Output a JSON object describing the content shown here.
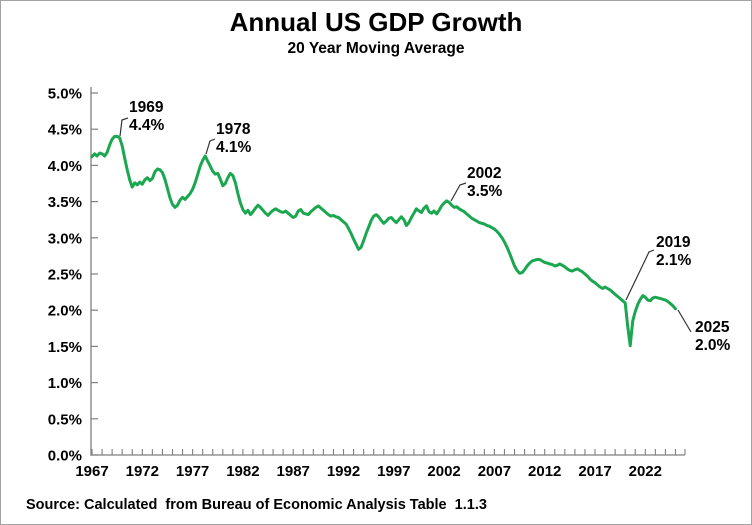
{
  "header": {
    "title": "Annual US GDP Growth",
    "subtitle": "20 Year Moving Average"
  },
  "footer": {
    "source": "Source: Calculated  from Bureau of Economic Analysis Table  1.1.3"
  },
  "chart_data": {
    "type": "line",
    "title": "Annual US GDP Growth",
    "subtitle": "20 Year Moving Average",
    "xlabel": "",
    "ylabel": "",
    "grid": "off",
    "legend": "none",
    "xlim": [
      1967,
      2025
    ],
    "ylim": [
      0,
      5
    ],
    "line_color": "#1ba750",
    "axis_color": "#7f7f7f",
    "leader_color": "#333333",
    "text_color": "#000000",
    "y_axis": {
      "min": 0,
      "max": 5,
      "step": 0.5,
      "unit": "%",
      "labels": [
        "0.0%",
        "0.5%",
        "1.0%",
        "1.5%",
        "2.0%",
        "2.5%",
        "3.0%",
        "3.5%",
        "4.0%",
        "4.5%",
        "5.0%"
      ]
    },
    "x_axis": {
      "tick_start": 1967,
      "tick_end": 2025,
      "tick_interval": 1,
      "label_years": [
        1967,
        1972,
        1977,
        1982,
        1987,
        1992,
        1997,
        2002,
        2007,
        2012,
        2017,
        2022
      ],
      "labels": [
        "1967",
        "1972",
        "1977",
        "1982",
        "1987",
        "1992",
        "1997",
        "2002",
        "2007",
        "2012",
        "2017",
        "2022"
      ]
    },
    "series": [
      {
        "name": "20-year moving average of annual US GDP growth (%)",
        "start_year": 1967,
        "step_years": 0.25,
        "values": [
          4.12,
          4.16,
          4.13,
          4.17,
          4.16,
          4.13,
          4.18,
          4.28,
          4.36,
          4.4,
          4.4,
          4.38,
          4.27,
          4.1,
          3.94,
          3.8,
          3.7,
          3.76,
          3.73,
          3.77,
          3.74,
          3.8,
          3.83,
          3.79,
          3.82,
          3.91,
          3.95,
          3.94,
          3.9,
          3.81,
          3.68,
          3.55,
          3.46,
          3.42,
          3.45,
          3.52,
          3.56,
          3.53,
          3.57,
          3.61,
          3.67,
          3.76,
          3.87,
          3.99,
          4.07,
          4.13,
          4.06,
          3.99,
          3.92,
          3.88,
          3.89,
          3.81,
          3.72,
          3.75,
          3.83,
          3.89,
          3.86,
          3.76,
          3.61,
          3.48,
          3.39,
          3.34,
          3.38,
          3.32,
          3.36,
          3.41,
          3.45,
          3.42,
          3.38,
          3.34,
          3.31,
          3.35,
          3.38,
          3.4,
          3.38,
          3.36,
          3.35,
          3.37,
          3.34,
          3.31,
          3.28,
          3.3,
          3.37,
          3.39,
          3.34,
          3.33,
          3.32,
          3.36,
          3.39,
          3.42,
          3.44,
          3.41,
          3.38,
          3.35,
          3.32,
          3.3,
          3.31,
          3.29,
          3.28,
          3.25,
          3.22,
          3.19,
          3.13,
          3.06,
          2.98,
          2.91,
          2.84,
          2.87,
          2.96,
          3.06,
          3.15,
          3.24,
          3.3,
          3.32,
          3.29,
          3.24,
          3.2,
          3.23,
          3.27,
          3.28,
          3.24,
          3.21,
          3.25,
          3.29,
          3.25,
          3.17,
          3.21,
          3.28,
          3.34,
          3.4,
          3.37,
          3.35,
          3.41,
          3.44,
          3.36,
          3.34,
          3.37,
          3.33,
          3.38,
          3.44,
          3.48,
          3.51,
          3.49,
          3.45,
          3.42,
          3.43,
          3.4,
          3.38,
          3.36,
          3.33,
          3.3,
          3.27,
          3.25,
          3.23,
          3.21,
          3.2,
          3.19,
          3.17,
          3.16,
          3.14,
          3.12,
          3.09,
          3.05,
          3.0,
          2.94,
          2.87,
          2.79,
          2.7,
          2.61,
          2.55,
          2.51,
          2.52,
          2.56,
          2.61,
          2.65,
          2.68,
          2.69,
          2.7,
          2.7,
          2.68,
          2.66,
          2.65,
          2.64,
          2.63,
          2.61,
          2.62,
          2.64,
          2.62,
          2.6,
          2.57,
          2.55,
          2.54,
          2.56,
          2.57,
          2.55,
          2.53,
          2.5,
          2.47,
          2.43,
          2.4,
          2.38,
          2.35,
          2.32,
          2.3,
          2.32,
          2.3,
          2.28,
          2.25,
          2.22,
          2.19,
          2.16,
          2.13,
          2.1,
          1.78,
          1.51,
          1.85,
          1.98,
          2.08,
          2.15,
          2.2,
          2.18,
          2.14,
          2.13,
          2.17,
          2.18,
          2.17,
          2.16,
          2.15,
          2.14,
          2.12,
          2.09,
          2.06,
          2.02
        ]
      }
    ],
    "annotations": [
      {
        "year": "1969",
        "value": "4.4%"
      },
      {
        "year": "1978",
        "value": "4.1%"
      },
      {
        "year": "2002",
        "value": "3.5%"
      },
      {
        "year": "2019",
        "value": "2.1%"
      },
      {
        "year": "2025",
        "value": "2.0%"
      }
    ]
  }
}
